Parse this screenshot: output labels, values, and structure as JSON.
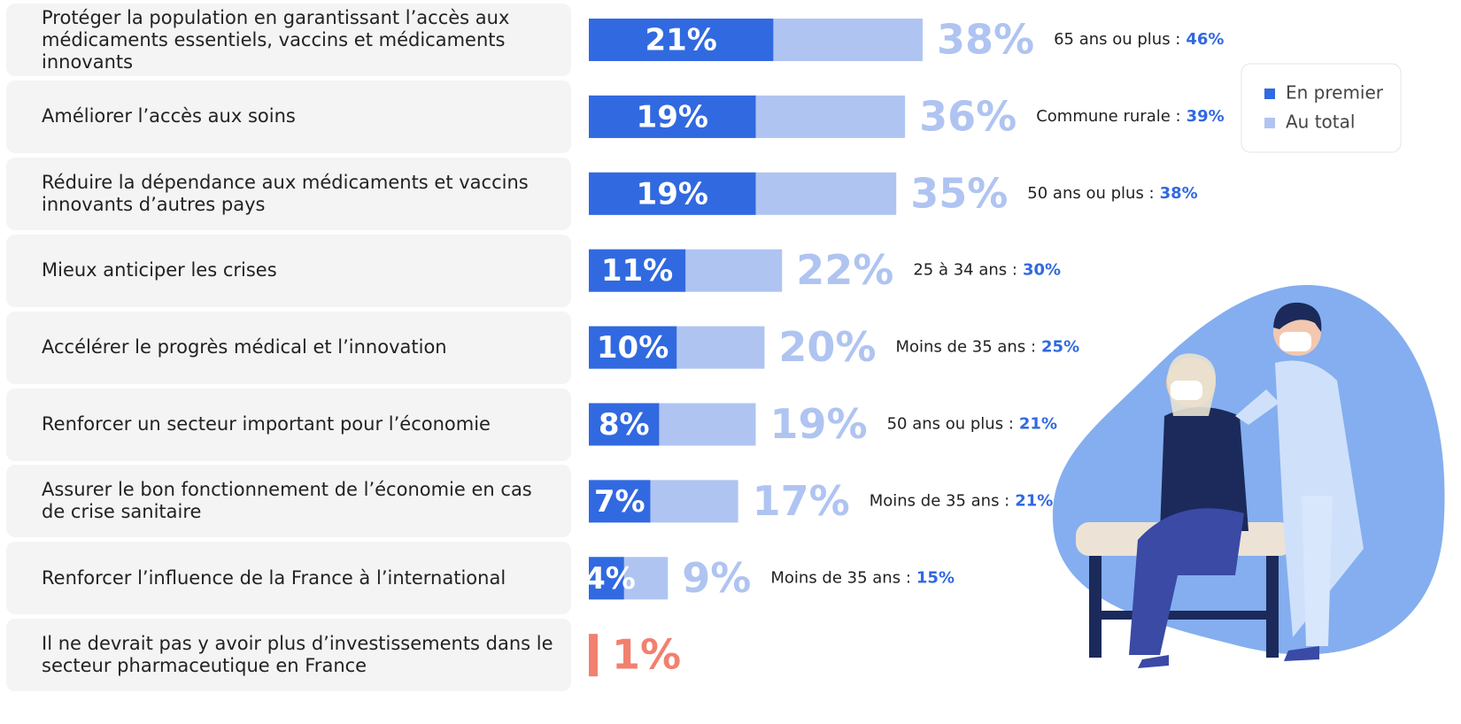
{
  "chart_data": {
    "type": "bar",
    "categories": [
      "Protéger la population en garantissant l’accès aux médicaments essentiels, vaccins et médicaments innovants",
      "Améliorer l’accès aux soins",
      "Réduire la dépendance aux médicaments et vaccins innovants d’autres pays",
      "Mieux anticiper les crises",
      "Accélérer le progrès médical et l’innovation",
      "Renforcer un secteur important pour l’économie",
      "Assurer le bon fonctionnement de l’économie en cas de crise sanitaire",
      "Renforcer l’influence de la France à l’international",
      "Il ne devrait pas y avoir plus d’investissements dans le secteur pharmaceutique en France"
    ],
    "series": [
      {
        "name": "En premier",
        "color": "#3169e0",
        "values": [
          21,
          19,
          19,
          11,
          10,
          8,
          7,
          4,
          null
        ],
        "value_labels": [
          "21%",
          "19%",
          "19%",
          "11%",
          "10%",
          "8%",
          "7%",
          "4%",
          null
        ]
      },
      {
        "name": "Au total",
        "color": "#afc4f1",
        "colors": [
          "#afc4f1",
          "#afc4f1",
          "#afc4f1",
          "#afc4f1",
          "#afc4f1",
          "#afc4f1",
          "#afc4f1",
          "#afc4f1",
          "#f2806f"
        ],
        "values": [
          38,
          36,
          35,
          22,
          20,
          19,
          17,
          9,
          1
        ],
        "value_labels": [
          "38%",
          "36%",
          "35%",
          "22%",
          "20%",
          "19%",
          "17%",
          "9%",
          "1%"
        ]
      }
    ],
    "highlights": {
      "labels": [
        "65 ans ou plus :",
        "Commune rurale :",
        "50 ans ou plus :",
        "25 à 34 ans :",
        "Moins de 35 ans :",
        "50 ans ou plus :",
        "Moins de 35 ans :",
        "Moins de 35 ans :",
        null
      ],
      "values": [
        46,
        39,
        38,
        30,
        25,
        21,
        21,
        15,
        null
      ],
      "value_labels": [
        "46%",
        "39%",
        "38%",
        "30%",
        "25%",
        "21%",
        "21%",
        "15%",
        null
      ],
      "color": "#3169e0"
    },
    "legend": "top-right"
  }
}
